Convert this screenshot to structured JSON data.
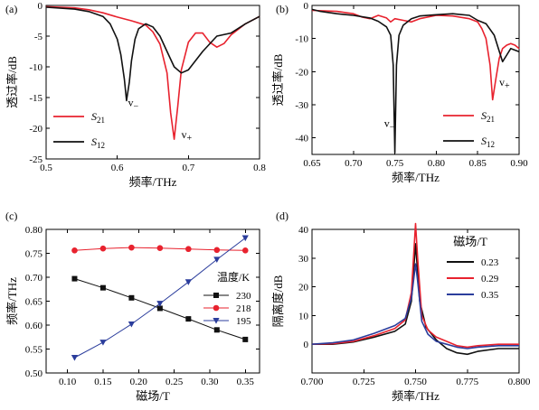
{
  "chart_data": [
    {
      "id": "a",
      "panel_label": "(a)",
      "type": "line",
      "xlabel": "频率/THz",
      "ylabel": "透过率/dB",
      "xlim": [
        0.5,
        0.8
      ],
      "ylim": [
        -25,
        0
      ],
      "xticks": [
        "0.5",
        "0.6",
        "0.7",
        "0.8"
      ],
      "yticks": [
        "0",
        "-5",
        "-10",
        "-15",
        "-20",
        "-25"
      ],
      "legend_placement": "bottom-left",
      "series": [
        {
          "name": "S21",
          "name_main": "S",
          "name_sub": "21",
          "color": "#e8222e",
          "x": [
            0.5,
            0.54,
            0.56,
            0.58,
            0.6,
            0.62,
            0.64,
            0.65,
            0.66,
            0.67,
            0.675,
            0.68,
            0.685,
            0.69,
            0.7,
            0.71,
            0.72,
            0.73,
            0.74,
            0.75,
            0.76,
            0.78,
            0.8
          ],
          "y": [
            -0.2,
            -0.4,
            -0.7,
            -1.2,
            -1.9,
            -2.5,
            -3.2,
            -4.3,
            -6.3,
            -11.0,
            -17.5,
            -21.8,
            -16.5,
            -10.5,
            -6.0,
            -4.5,
            -4.5,
            -6.0,
            -6.8,
            -6.2,
            -4.8,
            -3.0,
            -1.8
          ]
        },
        {
          "name": "S12",
          "name_main": "S",
          "name_sub": "12",
          "color": "#111111",
          "x": [
            0.5,
            0.54,
            0.56,
            0.58,
            0.59,
            0.6,
            0.605,
            0.61,
            0.613,
            0.617,
            0.62,
            0.625,
            0.63,
            0.64,
            0.65,
            0.66,
            0.67,
            0.68,
            0.69,
            0.7,
            0.72,
            0.74,
            0.76,
            0.78,
            0.8
          ],
          "y": [
            -0.3,
            -0.6,
            -1.0,
            -1.8,
            -3.0,
            -5.5,
            -8.0,
            -12.0,
            -15.5,
            -12.5,
            -9.0,
            -5.5,
            -3.8,
            -3.0,
            -3.5,
            -5.0,
            -7.5,
            -10.0,
            -11.0,
            -10.5,
            -7.5,
            -5.0,
            -4.5,
            -3.0,
            -1.8
          ]
        }
      ],
      "annotations": [
        {
          "main": "v",
          "sub": "−",
          "x": 0.615,
          "y": -16.4
        },
        {
          "main": "v",
          "sub": "+",
          "x": 0.69,
          "y": -21.6
        }
      ]
    },
    {
      "id": "b",
      "panel_label": "(b)",
      "type": "line",
      "xlabel": "频率/THz",
      "ylabel": "透过率/dB",
      "xlim": [
        0.65,
        0.9
      ],
      "ylim": [
        -45,
        0
      ],
      "xticks": [
        "0.65",
        "0.70",
        "0.75",
        "0.80",
        "0.85",
        "0.90"
      ],
      "yticks": [
        "0",
        "-10",
        "-20",
        "-30",
        "-40"
      ],
      "legend_placement": "bottom-right",
      "series": [
        {
          "name": "S21",
          "name_main": "S",
          "name_sub": "21",
          "color": "#e8222e",
          "x": [
            0.65,
            0.68,
            0.7,
            0.71,
            0.72,
            0.73,
            0.74,
            0.745,
            0.75,
            0.76,
            0.77,
            0.78,
            0.8,
            0.82,
            0.84,
            0.85,
            0.855,
            0.86,
            0.865,
            0.868,
            0.872,
            0.876,
            0.88,
            0.885,
            0.89,
            0.895,
            0.9
          ],
          "y": [
            -1.5,
            -1.8,
            -2.5,
            -3.5,
            -4.0,
            -3.0,
            -3.8,
            -5.0,
            -4.0,
            -4.5,
            -5.0,
            -4.0,
            -3.0,
            -3.2,
            -4.0,
            -5.0,
            -7.0,
            -10.0,
            -18.0,
            -28.5,
            -22.0,
            -16.0,
            -13.0,
            -12.0,
            -11.5,
            -12.0,
            -13.0
          ]
        },
        {
          "name": "S12",
          "name_main": "S",
          "name_sub": "12",
          "color": "#111111",
          "x": [
            0.65,
            0.66,
            0.68,
            0.7,
            0.72,
            0.73,
            0.74,
            0.745,
            0.748,
            0.75,
            0.752,
            0.755,
            0.76,
            0.77,
            0.78,
            0.8,
            0.82,
            0.84,
            0.85,
            0.86,
            0.87,
            0.875,
            0.88,
            0.885,
            0.89,
            0.9
          ],
          "y": [
            -1.2,
            -1.8,
            -2.5,
            -3.0,
            -3.8,
            -4.8,
            -6.5,
            -9.0,
            -18.0,
            -44.5,
            -18.0,
            -9.0,
            -6.0,
            -4.0,
            -3.2,
            -2.8,
            -2.5,
            -3.0,
            -4.5,
            -5.5,
            -9.0,
            -13.0,
            -17.0,
            -15.0,
            -13.0,
            -14.0
          ]
        }
      ],
      "annotations": [
        {
          "main": "v",
          "sub": "−",
          "x": 0.737,
          "y": -36.7
        },
        {
          "main": "v",
          "sub": "+",
          "x": 0.876,
          "y": -24.3
        }
      ]
    },
    {
      "id": "c",
      "panel_label": "(c)",
      "type": "line",
      "xlabel": "磁场/T",
      "ylabel": "频率/THz",
      "xlim": [
        0.07,
        0.37
      ],
      "ylim": [
        0.5,
        0.8
      ],
      "xticks": [
        "0.10",
        "0.15",
        "0.20",
        "0.25",
        "0.30",
        "0.35"
      ],
      "yticks": [
        "0.50",
        "0.55",
        "0.60",
        "0.65",
        "0.70",
        "0.75",
        "0.80"
      ],
      "legend_title": "温度/K",
      "legend_placement": "right",
      "series": [
        {
          "name": "230",
          "color": "#111111",
          "marker": "square",
          "x": [
            0.11,
            0.15,
            0.19,
            0.23,
            0.27,
            0.31,
            0.35
          ],
          "y": [
            0.697,
            0.678,
            0.657,
            0.635,
            0.613,
            0.59,
            0.57
          ]
        },
        {
          "name": "218",
          "color": "#e8222e",
          "marker": "circle",
          "x": [
            0.11,
            0.15,
            0.19,
            0.23,
            0.27,
            0.31,
            0.35
          ],
          "y": [
            0.756,
            0.76,
            0.762,
            0.761,
            0.759,
            0.757,
            0.756
          ]
        },
        {
          "name": "195",
          "color": "#2b3d9c",
          "marker": "triangle-down",
          "x": [
            0.11,
            0.15,
            0.19,
            0.23,
            0.27,
            0.31,
            0.35
          ],
          "y": [
            0.532,
            0.564,
            0.602,
            0.645,
            0.69,
            0.737,
            0.782
          ]
        }
      ]
    },
    {
      "id": "d",
      "panel_label": "(d)",
      "type": "line",
      "xlabel": "频率/THz",
      "ylabel": "隔离度/dB",
      "xlim": [
        0.7,
        0.8
      ],
      "ylim": [
        -10,
        40
      ],
      "xticks": [
        "0.700",
        "0.725",
        "0.750",
        "0.775",
        "0.800"
      ],
      "yticks": [
        "0",
        "10",
        "20",
        "30",
        "40"
      ],
      "legend_title": "磁场/T",
      "legend_placement": "top-right",
      "series": [
        {
          "name": "0.23",
          "color": "#111111",
          "x": [
            0.7,
            0.71,
            0.72,
            0.73,
            0.74,
            0.745,
            0.748,
            0.75,
            0.752,
            0.755,
            0.76,
            0.765,
            0.77,
            0.775,
            0.78,
            0.79,
            0.8
          ],
          "y": [
            0,
            0,
            0.8,
            2.5,
            4.5,
            7.0,
            15.0,
            35.0,
            15.0,
            6.0,
            1.5,
            -1.5,
            -3.0,
            -3.5,
            -2.5,
            -1.5,
            -1.5
          ]
        },
        {
          "name": "0.29",
          "color": "#e8222e",
          "x": [
            0.7,
            0.71,
            0.72,
            0.73,
            0.74,
            0.745,
            0.748,
            0.75,
            0.751,
            0.753,
            0.756,
            0.76,
            0.765,
            0.77,
            0.775,
            0.78,
            0.79,
            0.8
          ],
          "y": [
            0,
            0.2,
            1.0,
            3.0,
            5.5,
            8.5,
            18.0,
            42.0,
            30.0,
            10.0,
            5.0,
            2.5,
            1.0,
            -0.5,
            -1.0,
            -0.5,
            0,
            0
          ]
        },
        {
          "name": "0.35",
          "color": "#2b3d9c",
          "x": [
            0.7,
            0.71,
            0.72,
            0.73,
            0.74,
            0.745,
            0.748,
            0.75,
            0.751,
            0.753,
            0.756,
            0.76,
            0.765,
            0.77,
            0.775,
            0.78,
            0.79,
            0.8
          ],
          "y": [
            0,
            0.5,
            1.5,
            3.8,
            6.5,
            9.0,
            16.0,
            28.0,
            22.0,
            8.0,
            3.5,
            1.0,
            0,
            -1.0,
            -1.5,
            -1.0,
            -0.5,
            -0.5
          ]
        }
      ]
    }
  ]
}
